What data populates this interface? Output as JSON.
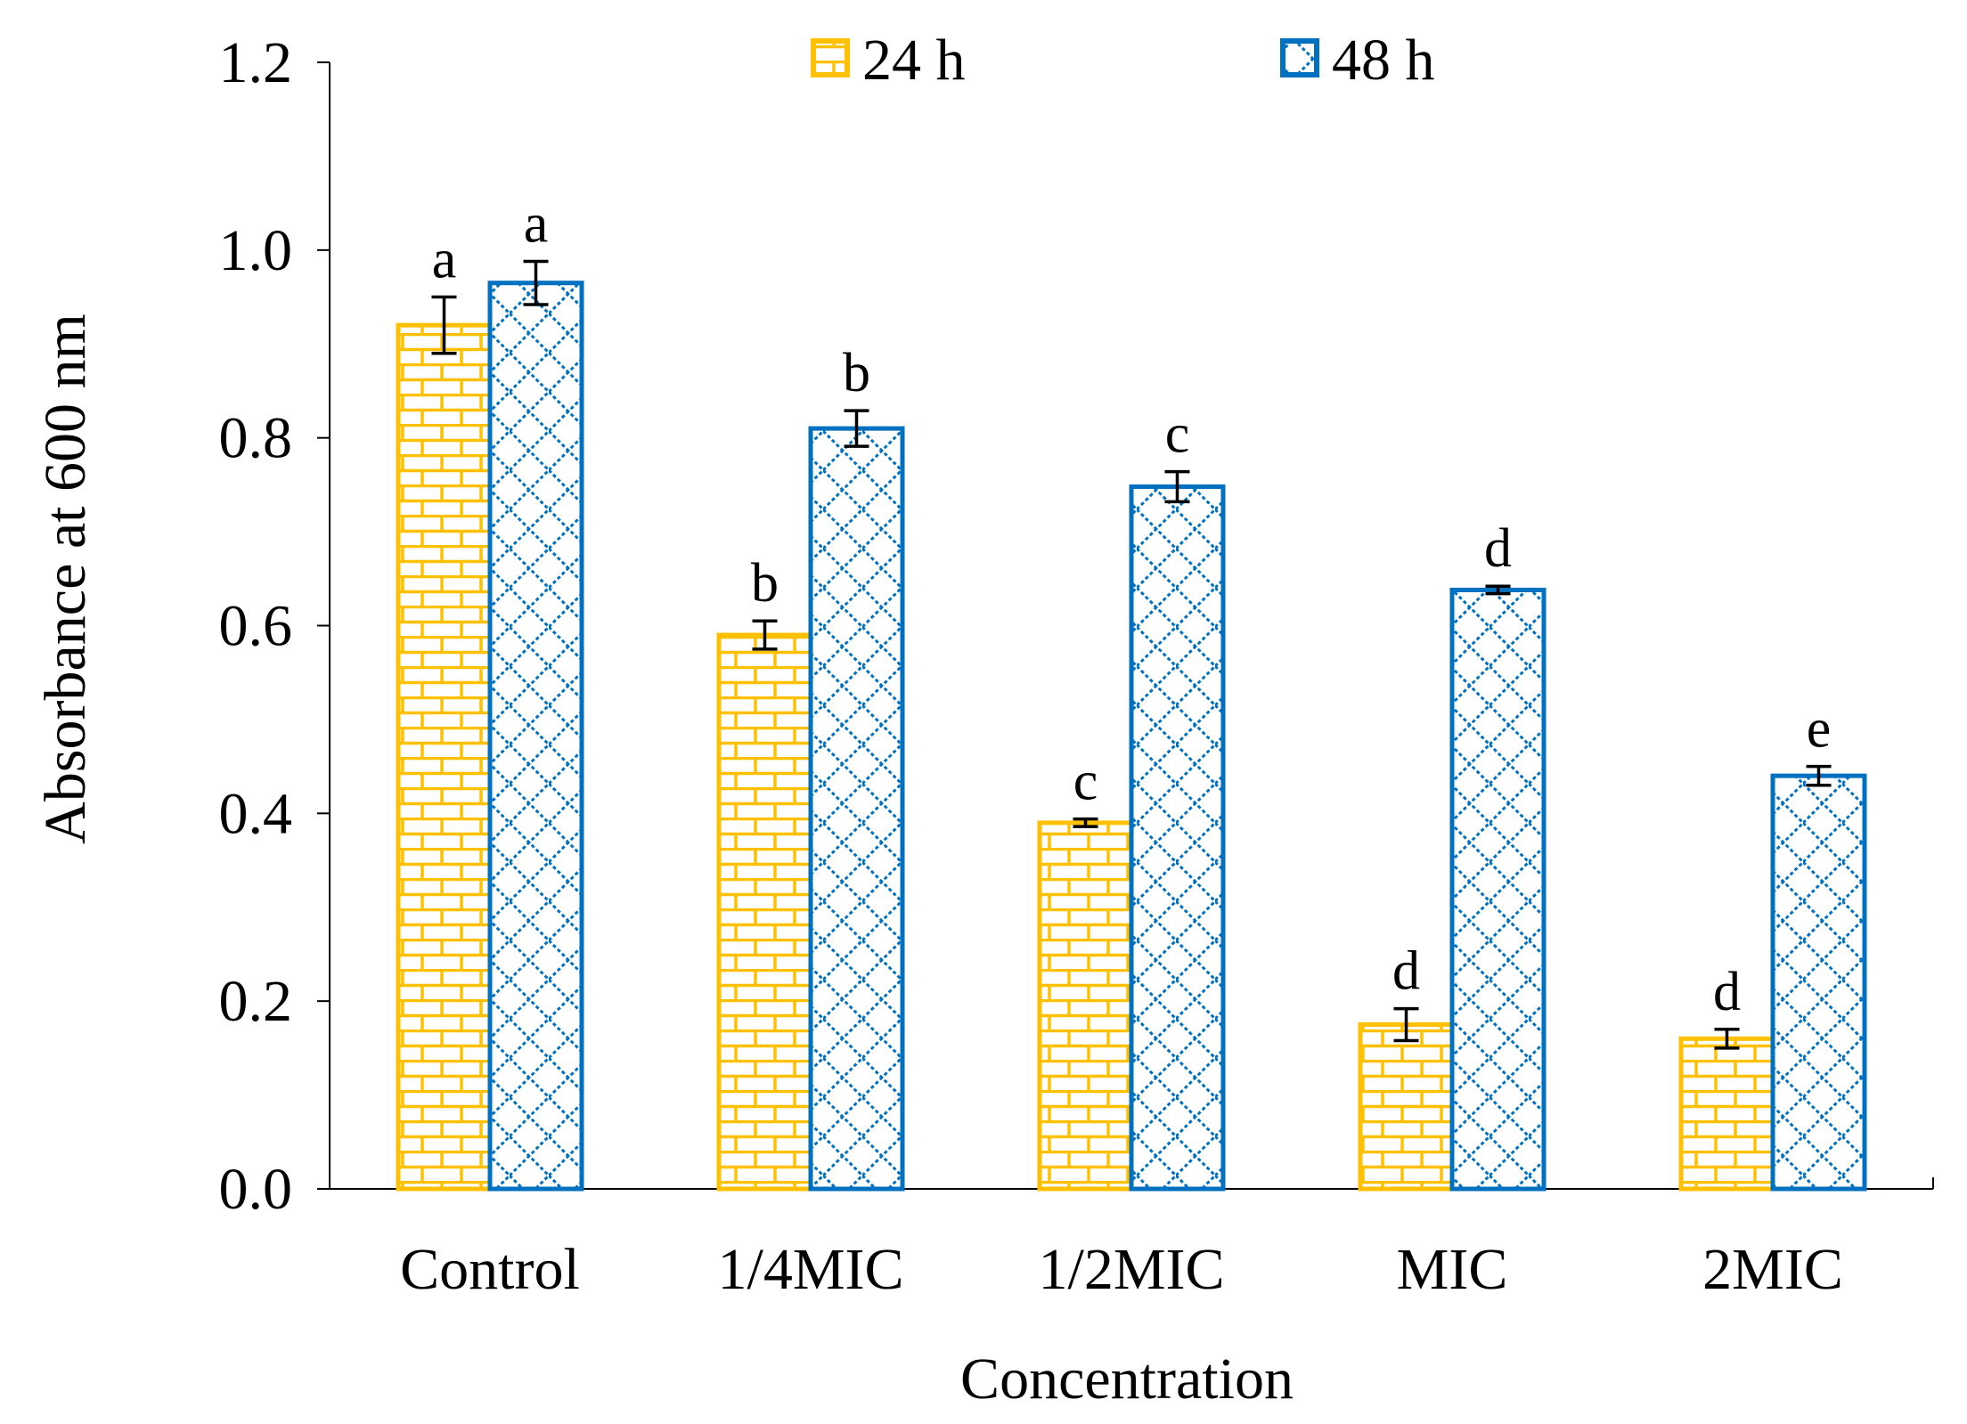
{
  "chart_data": {
    "type": "bar",
    "title": "",
    "xlabel": "Concentration",
    "ylabel": "Absorbance at 600 nm",
    "ylim": [
      0,
      1.2
    ],
    "yticks": [
      "0.0",
      "0.2",
      "0.4",
      "0.6",
      "0.8",
      "1.0",
      "1.2"
    ],
    "categories": [
      "Control",
      "1/4MIC",
      "1/2MIC",
      "MIC",
      "2MIC"
    ],
    "legend_position": "top-center",
    "series": [
      {
        "name": "24 h",
        "color": "#FFC000",
        "pattern": "brick",
        "values": [
          0.92,
          0.59,
          0.39,
          0.175,
          0.16
        ],
        "errors": [
          0.03,
          0.015,
          0.004,
          0.017,
          0.01
        ],
        "labels": [
          "a",
          "b",
          "c",
          "d",
          "d"
        ]
      },
      {
        "name": "48 h",
        "color": "#0070C0",
        "pattern": "diamond",
        "values": [
          0.965,
          0.81,
          0.748,
          0.638,
          0.44
        ],
        "errors": [
          0.023,
          0.019,
          0.016,
          0.004,
          0.01
        ],
        "labels": [
          "a",
          "b",
          "c",
          "d",
          "e"
        ]
      }
    ]
  }
}
